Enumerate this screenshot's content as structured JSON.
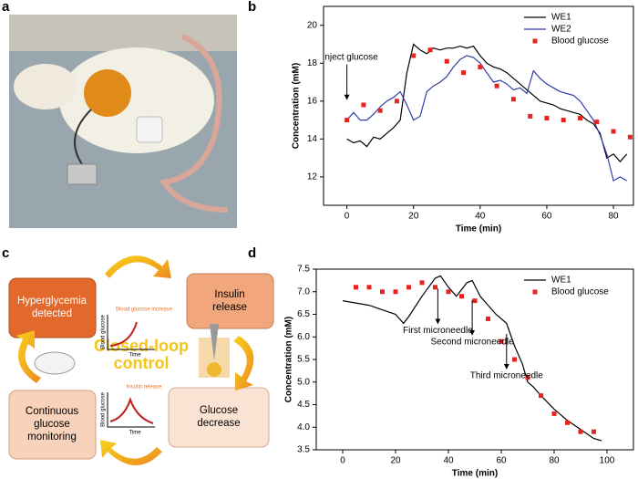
{
  "panels": [
    "a",
    "b",
    "c",
    "d"
  ],
  "diagram": {
    "boxes": [
      {
        "lines": [
          "Hyperglycemia",
          "detected"
        ]
      },
      {
        "lines": [
          "Insulin",
          "release"
        ]
      },
      {
        "lines": [
          "Continuous",
          "glucose",
          "monitoring"
        ]
      },
      {
        "lines": [
          "Glucose",
          "decrease"
        ]
      }
    ],
    "center": [
      "Closed-loop",
      "control"
    ],
    "mini_charts": [
      {
        "caption": "Blood glucose increase",
        "ylabel": "Blood glucose",
        "xlabel": "Time"
      },
      {
        "caption": "Insulin release",
        "ylabel": "Blood glucose",
        "xlabel": "Time"
      }
    ]
  },
  "chart_data": [
    {
      "type": "line",
      "xlabel": "Time (min)",
      "ylabel": "Concentration (mM)",
      "xlim": [
        -7,
        86
      ],
      "ylim": [
        10.5,
        21
      ],
      "xticks": [
        0,
        20,
        40,
        60,
        80
      ],
      "yticks": [
        12,
        14,
        16,
        18,
        20
      ],
      "legend": "upper right",
      "series": [
        {
          "name": "WE1",
          "color": "#000000",
          "kind": "line",
          "x": [
            0,
            2,
            4,
            6,
            8,
            10,
            12,
            14,
            16,
            18,
            20,
            22,
            24,
            26,
            28,
            30,
            32,
            34,
            36,
            38,
            40,
            42,
            44,
            46,
            48,
            50,
            52,
            54,
            56,
            58,
            60,
            62,
            64,
            66,
            68,
            70,
            72,
            74,
            76,
            78,
            80,
            82,
            84
          ],
          "values": [
            14,
            13.8,
            13.9,
            13.6,
            14.1,
            14,
            14.3,
            14.6,
            15,
            17.5,
            19,
            18.7,
            18.5,
            18.8,
            18.7,
            18.8,
            18.8,
            18.9,
            18.8,
            18.9,
            18.4,
            18,
            17.8,
            17.7,
            17.5,
            17.2,
            16.9,
            16.6,
            16.3,
            16,
            15.9,
            15.8,
            15.6,
            15.5,
            15.4,
            15.3,
            15,
            14.8,
            14.3,
            13,
            13.2,
            12.8,
            13.2
          ]
        },
        {
          "name": "WE2",
          "color": "#2f3fa8",
          "kind": "line",
          "x": [
            0,
            2,
            4,
            6,
            8,
            10,
            12,
            14,
            16,
            18,
            20,
            22,
            24,
            26,
            28,
            30,
            32,
            34,
            36,
            38,
            40,
            42,
            44,
            46,
            48,
            50,
            52,
            54,
            56,
            58,
            60,
            62,
            64,
            66,
            68,
            70,
            72,
            74,
            76,
            78,
            80,
            82,
            84
          ],
          "values": [
            15,
            15.4,
            15,
            15,
            15.3,
            15.7,
            16,
            16.2,
            16.5,
            15.8,
            15,
            15.2,
            16.5,
            16.8,
            17,
            17.3,
            17.8,
            18.2,
            18.4,
            18.3,
            18,
            17.5,
            17,
            17.1,
            16.9,
            16.6,
            16.7,
            16.4,
            17.6,
            17.2,
            16.9,
            16.7,
            16.5,
            16.4,
            16.3,
            16,
            15.5,
            15,
            14.2,
            13.2,
            11.8,
            12,
            11.8
          ]
        },
        {
          "name": "Blood glucose",
          "color": "#e8231e",
          "kind": "scatter",
          "x": [
            0,
            5,
            10,
            15,
            20,
            25,
            30,
            35,
            40,
            45,
            50,
            55,
            60,
            65,
            70,
            75,
            80,
            85
          ],
          "values": [
            15,
            15.8,
            15.5,
            16,
            18.4,
            18.7,
            18.1,
            17.5,
            17.8,
            16.8,
            16.1,
            15.2,
            15.1,
            15,
            15.1,
            14.9,
            14.4,
            14.1
          ]
        }
      ],
      "annotations": [
        {
          "text": "Inject glucose",
          "x": 0,
          "y": 16.1
        }
      ]
    },
    {
      "type": "line",
      "xlabel": "Time (min)",
      "ylabel": "Concentration (mM)",
      "xlim": [
        -10,
        110
      ],
      "ylim": [
        3.5,
        7.5
      ],
      "xticks": [
        0,
        20,
        40,
        60,
        80,
        100
      ],
      "yticks": [
        3.5,
        {
          "value": 4,
          "label": "4.0"
        },
        4.5,
        {
          "value": 5,
          "label": "5.0"
        },
        5.5,
        {
          "value": 6,
          "label": "6.0"
        },
        6.5,
        {
          "value": 7,
          "label": "7.0"
        },
        7.5
      ],
      "legend": "upper right",
      "series": [
        {
          "name": "WE1",
          "color": "#000000",
          "kind": "line",
          "x": [
            0,
            5,
            10,
            15,
            20,
            23,
            25,
            30,
            35,
            37,
            40,
            43,
            47,
            49,
            52,
            55,
            58,
            62,
            65,
            68,
            70,
            72,
            75,
            80,
            85,
            90,
            95,
            98
          ],
          "values": [
            6.8,
            6.75,
            6.7,
            6.6,
            6.5,
            6.3,
            6.45,
            6.9,
            7.3,
            7.35,
            7.1,
            6.9,
            7.2,
            7.25,
            6.9,
            6.7,
            6.5,
            6.3,
            5.8,
            5.4,
            5,
            4.9,
            4.7,
            4.4,
            4.15,
            3.95,
            3.75,
            3.7
          ]
        },
        {
          "name": "Blood glucose",
          "color": "#e8231e",
          "kind": "scatter",
          "x": [
            5,
            10,
            15,
            20,
            25,
            30,
            35,
            40,
            45,
            50,
            55,
            60,
            65,
            70,
            75,
            80,
            85,
            90,
            95
          ],
          "values": [
            7.1,
            7.1,
            7,
            7,
            7.1,
            7.2,
            7.1,
            7,
            6.9,
            6.8,
            6.4,
            5.9,
            5.5,
            5.1,
            4.7,
            4.3,
            4.1,
            3.9,
            3.9
          ]
        }
      ],
      "annotations": [
        {
          "text": "First microneedle",
          "x": 36,
          "y": 6.3
        },
        {
          "text": "Second microneedle",
          "x": 49,
          "y": 6.05
        },
        {
          "text": "Third microneedle",
          "x": 62,
          "y": 5.3
        }
      ]
    }
  ]
}
